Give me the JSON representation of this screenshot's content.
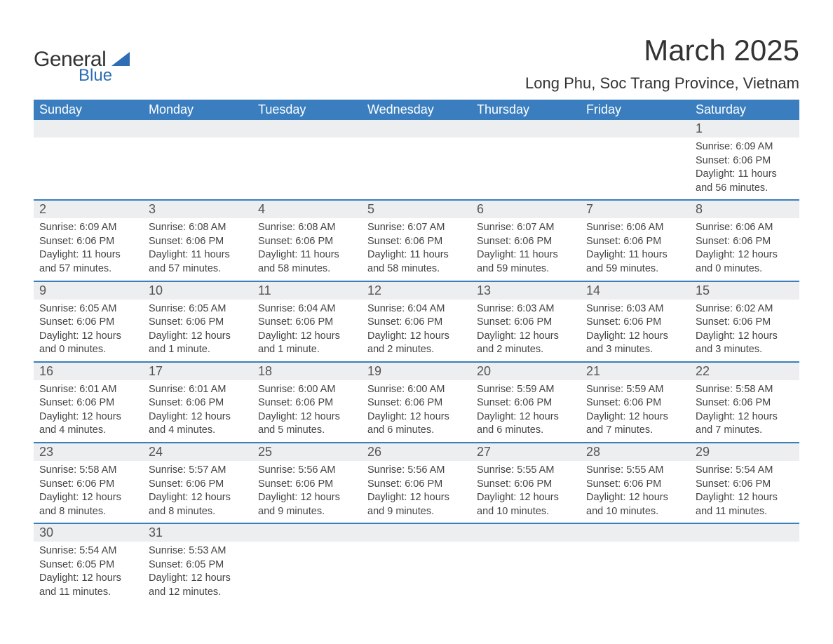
{
  "colors": {
    "header_bg": "#3a7ebf",
    "header_text": "#ffffff",
    "row_divider": "#3a7ebf",
    "daynum_bg": "#eceeef",
    "body_bg": "#ffffff",
    "text": "#444444",
    "logo_blue": "#2d6eb4"
  },
  "logo": {
    "line1": "General",
    "line2": "Blue"
  },
  "title": "March 2025",
  "location": "Long Phu, Soc Trang Province, Vietnam",
  "weekdays": [
    "Sunday",
    "Monday",
    "Tuesday",
    "Wednesday",
    "Thursday",
    "Friday",
    "Saturday"
  ],
  "weeks": [
    [
      null,
      null,
      null,
      null,
      null,
      null,
      {
        "day": "1",
        "sunrise": "Sunrise: 6:09 AM",
        "sunset": "Sunset: 6:06 PM",
        "daylight1": "Daylight: 11 hours",
        "daylight2": "and 56 minutes."
      }
    ],
    [
      {
        "day": "2",
        "sunrise": "Sunrise: 6:09 AM",
        "sunset": "Sunset: 6:06 PM",
        "daylight1": "Daylight: 11 hours",
        "daylight2": "and 57 minutes."
      },
      {
        "day": "3",
        "sunrise": "Sunrise: 6:08 AM",
        "sunset": "Sunset: 6:06 PM",
        "daylight1": "Daylight: 11 hours",
        "daylight2": "and 57 minutes."
      },
      {
        "day": "4",
        "sunrise": "Sunrise: 6:08 AM",
        "sunset": "Sunset: 6:06 PM",
        "daylight1": "Daylight: 11 hours",
        "daylight2": "and 58 minutes."
      },
      {
        "day": "5",
        "sunrise": "Sunrise: 6:07 AM",
        "sunset": "Sunset: 6:06 PM",
        "daylight1": "Daylight: 11 hours",
        "daylight2": "and 58 minutes."
      },
      {
        "day": "6",
        "sunrise": "Sunrise: 6:07 AM",
        "sunset": "Sunset: 6:06 PM",
        "daylight1": "Daylight: 11 hours",
        "daylight2": "and 59 minutes."
      },
      {
        "day": "7",
        "sunrise": "Sunrise: 6:06 AM",
        "sunset": "Sunset: 6:06 PM",
        "daylight1": "Daylight: 11 hours",
        "daylight2": "and 59 minutes."
      },
      {
        "day": "8",
        "sunrise": "Sunrise: 6:06 AM",
        "sunset": "Sunset: 6:06 PM",
        "daylight1": "Daylight: 12 hours",
        "daylight2": "and 0 minutes."
      }
    ],
    [
      {
        "day": "9",
        "sunrise": "Sunrise: 6:05 AM",
        "sunset": "Sunset: 6:06 PM",
        "daylight1": "Daylight: 12 hours",
        "daylight2": "and 0 minutes."
      },
      {
        "day": "10",
        "sunrise": "Sunrise: 6:05 AM",
        "sunset": "Sunset: 6:06 PM",
        "daylight1": "Daylight: 12 hours",
        "daylight2": "and 1 minute."
      },
      {
        "day": "11",
        "sunrise": "Sunrise: 6:04 AM",
        "sunset": "Sunset: 6:06 PM",
        "daylight1": "Daylight: 12 hours",
        "daylight2": "and 1 minute."
      },
      {
        "day": "12",
        "sunrise": "Sunrise: 6:04 AM",
        "sunset": "Sunset: 6:06 PM",
        "daylight1": "Daylight: 12 hours",
        "daylight2": "and 2 minutes."
      },
      {
        "day": "13",
        "sunrise": "Sunrise: 6:03 AM",
        "sunset": "Sunset: 6:06 PM",
        "daylight1": "Daylight: 12 hours",
        "daylight2": "and 2 minutes."
      },
      {
        "day": "14",
        "sunrise": "Sunrise: 6:03 AM",
        "sunset": "Sunset: 6:06 PM",
        "daylight1": "Daylight: 12 hours",
        "daylight2": "and 3 minutes."
      },
      {
        "day": "15",
        "sunrise": "Sunrise: 6:02 AM",
        "sunset": "Sunset: 6:06 PM",
        "daylight1": "Daylight: 12 hours",
        "daylight2": "and 3 minutes."
      }
    ],
    [
      {
        "day": "16",
        "sunrise": "Sunrise: 6:01 AM",
        "sunset": "Sunset: 6:06 PM",
        "daylight1": "Daylight: 12 hours",
        "daylight2": "and 4 minutes."
      },
      {
        "day": "17",
        "sunrise": "Sunrise: 6:01 AM",
        "sunset": "Sunset: 6:06 PM",
        "daylight1": "Daylight: 12 hours",
        "daylight2": "and 4 minutes."
      },
      {
        "day": "18",
        "sunrise": "Sunrise: 6:00 AM",
        "sunset": "Sunset: 6:06 PM",
        "daylight1": "Daylight: 12 hours",
        "daylight2": "and 5 minutes."
      },
      {
        "day": "19",
        "sunrise": "Sunrise: 6:00 AM",
        "sunset": "Sunset: 6:06 PM",
        "daylight1": "Daylight: 12 hours",
        "daylight2": "and 6 minutes."
      },
      {
        "day": "20",
        "sunrise": "Sunrise: 5:59 AM",
        "sunset": "Sunset: 6:06 PM",
        "daylight1": "Daylight: 12 hours",
        "daylight2": "and 6 minutes."
      },
      {
        "day": "21",
        "sunrise": "Sunrise: 5:59 AM",
        "sunset": "Sunset: 6:06 PM",
        "daylight1": "Daylight: 12 hours",
        "daylight2": "and 7 minutes."
      },
      {
        "day": "22",
        "sunrise": "Sunrise: 5:58 AM",
        "sunset": "Sunset: 6:06 PM",
        "daylight1": "Daylight: 12 hours",
        "daylight2": "and 7 minutes."
      }
    ],
    [
      {
        "day": "23",
        "sunrise": "Sunrise: 5:58 AM",
        "sunset": "Sunset: 6:06 PM",
        "daylight1": "Daylight: 12 hours",
        "daylight2": "and 8 minutes."
      },
      {
        "day": "24",
        "sunrise": "Sunrise: 5:57 AM",
        "sunset": "Sunset: 6:06 PM",
        "daylight1": "Daylight: 12 hours",
        "daylight2": "and 8 minutes."
      },
      {
        "day": "25",
        "sunrise": "Sunrise: 5:56 AM",
        "sunset": "Sunset: 6:06 PM",
        "daylight1": "Daylight: 12 hours",
        "daylight2": "and 9 minutes."
      },
      {
        "day": "26",
        "sunrise": "Sunrise: 5:56 AM",
        "sunset": "Sunset: 6:06 PM",
        "daylight1": "Daylight: 12 hours",
        "daylight2": "and 9 minutes."
      },
      {
        "day": "27",
        "sunrise": "Sunrise: 5:55 AM",
        "sunset": "Sunset: 6:06 PM",
        "daylight1": "Daylight: 12 hours",
        "daylight2": "and 10 minutes."
      },
      {
        "day": "28",
        "sunrise": "Sunrise: 5:55 AM",
        "sunset": "Sunset: 6:06 PM",
        "daylight1": "Daylight: 12 hours",
        "daylight2": "and 10 minutes."
      },
      {
        "day": "29",
        "sunrise": "Sunrise: 5:54 AM",
        "sunset": "Sunset: 6:06 PM",
        "daylight1": "Daylight: 12 hours",
        "daylight2": "and 11 minutes."
      }
    ],
    [
      {
        "day": "30",
        "sunrise": "Sunrise: 5:54 AM",
        "sunset": "Sunset: 6:05 PM",
        "daylight1": "Daylight: 12 hours",
        "daylight2": "and 11 minutes."
      },
      {
        "day": "31",
        "sunrise": "Sunrise: 5:53 AM",
        "sunset": "Sunset: 6:05 PM",
        "daylight1": "Daylight: 12 hours",
        "daylight2": "and 12 minutes."
      },
      null,
      null,
      null,
      null,
      null
    ]
  ]
}
